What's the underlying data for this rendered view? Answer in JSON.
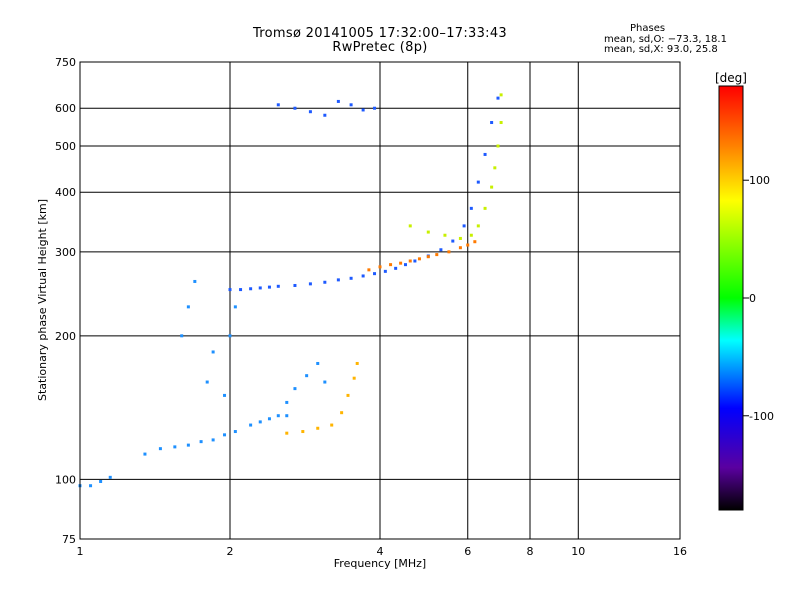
{
  "title": {
    "line1": "Tromsø 20141005 17:32:00–17:33:43",
    "line2": "RwPretec (8p)"
  },
  "stats": {
    "heading": "Phases",
    "o_mode": "mean, sd,O: −73.3, 18.1",
    "x_mode": "mean, sd,X:  93.0, 25.8"
  },
  "chart_data": {
    "type": "scatter",
    "xlabel": "Frequency [MHz]",
    "ylabel": "Stationary phase Virtual Height [km]",
    "xscale": "log2",
    "yscale": "log",
    "xlim": [
      1,
      16
    ],
    "ylim": [
      75,
      750
    ],
    "x_ticks": [
      1,
      2,
      4,
      6,
      8,
      10,
      16
    ],
    "x_tick_labels": [
      "1",
      "2",
      "4",
      "6",
      "8",
      "10",
      "16"
    ],
    "y_ticks": [
      75,
      100,
      200,
      300,
      400,
      500,
      600,
      750
    ],
    "y_tick_labels": [
      "75",
      "100",
      "200",
      "300",
      "400",
      "500",
      "600",
      "750"
    ],
    "grid": true,
    "colorbar": {
      "label": "[deg]",
      "range": [
        -180,
        180
      ],
      "ticks": [
        100,
        0,
        -100
      ],
      "tick_labels": [
        "100",
        "0",
        "-100"
      ],
      "colors": [
        "#ff0000",
        "#ff8000",
        "#ffff00",
        "#00ff00",
        "#00ffff",
        "#0000ff",
        "#5a00a0",
        "#000000"
      ]
    },
    "series": [
      {
        "color": "#1e90ff",
        "phase": -80,
        "x": [
          1.0,
          1.05,
          1.1,
          1.15,
          1.35,
          1.45,
          1.55,
          1.65,
          1.75,
          1.85,
          1.95,
          2.05,
          2.2,
          2.3,
          2.4,
          2.5,
          2.6
        ],
        "y": [
          97,
          97,
          99,
          101,
          113,
          116,
          117,
          118,
          120,
          121,
          124,
          126,
          130,
          132,
          134,
          136,
          136
        ]
      },
      {
        "color": "#1e5aff",
        "phase": -95,
        "x": [
          2.0,
          2.1,
          2.2,
          2.3,
          2.4,
          2.5,
          2.7,
          2.9,
          3.1,
          3.3,
          3.5,
          3.7,
          3.9,
          4.1,
          4.3,
          4.5,
          4.7,
          5.0,
          5.3,
          5.6,
          5.9,
          6.1,
          6.3,
          6.5,
          6.7,
          6.9
        ],
        "y": [
          250,
          250,
          251,
          252,
          253,
          254,
          255,
          257,
          259,
          262,
          264,
          267,
          270,
          273,
          277,
          282,
          287,
          294,
          303,
          316,
          340,
          370,
          420,
          480,
          560,
          630
        ]
      },
      {
        "color": "#ff7a00",
        "phase": 130,
        "x": [
          3.8,
          4.0,
          4.2,
          4.4,
          4.6,
          4.8,
          5.0,
          5.2,
          5.5,
          5.8,
          6.0,
          6.2
        ],
        "y": [
          275,
          279,
          282,
          284,
          287,
          290,
          293,
          296,
          300,
          306,
          310,
          315
        ]
      },
      {
        "color": "#c8f000",
        "phase": 90,
        "x": [
          4.6,
          5.0,
          5.4,
          5.8,
          6.1,
          6.3,
          6.5,
          6.7,
          6.8,
          6.9,
          7.0,
          7.0
        ],
        "y": [
          340,
          330,
          325,
          320,
          325,
          340,
          370,
          410,
          450,
          500,
          560,
          640
        ]
      },
      {
        "color": "#ffb400",
        "phase": 110,
        "x": [
          2.6,
          2.8,
          3.0,
          3.2,
          3.35,
          3.45,
          3.55,
          3.6
        ],
        "y": [
          125,
          126,
          128,
          130,
          138,
          150,
          163,
          175
        ]
      },
      {
        "color": "#1e5aff",
        "phase": -100,
        "x": [
          2.5,
          2.7,
          2.9,
          3.1,
          3.3,
          3.5,
          3.7,
          3.9
        ],
        "y": [
          610,
          600,
          590,
          580,
          620,
          610,
          595,
          600
        ]
      },
      {
        "color": "#1e90ff",
        "phase": -80,
        "x": [
          1.6,
          1.65,
          1.7,
          1.8,
          1.85,
          1.95,
          2.0,
          2.05,
          2.6,
          2.7,
          2.85,
          3.0,
          3.1
        ],
        "y": [
          200,
          230,
          260,
          160,
          185,
          150,
          200,
          230,
          145,
          155,
          165,
          175,
          160
        ]
      }
    ]
  }
}
